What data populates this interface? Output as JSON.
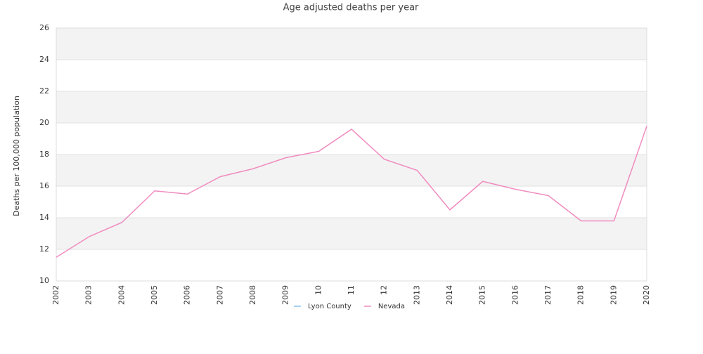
{
  "chart_data": {
    "type": "line",
    "title": "Age adjusted deaths per year",
    "y_label": "Deaths per 100,000 population",
    "categories": [
      "2002",
      "2003",
      "2004",
      "2005",
      "2006",
      "2007",
      "2008",
      "2009",
      "10",
      "11",
      "12",
      "2013",
      "2014",
      "2015",
      "2016",
      "2017",
      "2018",
      "2019",
      "2020"
    ],
    "series": [
      {
        "name": "Lyon County",
        "color": "#8ec3ea",
        "values": [
          null,
          null,
          null,
          null,
          null,
          null,
          null,
          null,
          null,
          null,
          null,
          null,
          null,
          null,
          null,
          null,
          null,
          null,
          null
        ]
      },
      {
        "name": "Nevada",
        "color": "#f08cc0",
        "values": [
          11.5,
          12.8,
          13.7,
          15.7,
          15.5,
          16.6,
          17.1,
          17.8,
          18.2,
          19.6,
          17.7,
          17.0,
          14.5,
          16.3,
          15.8,
          15.4,
          13.8,
          13.8,
          19.8
        ]
      }
    ],
    "ylim": [
      10,
      26
    ],
    "yticks": [
      10,
      12,
      14,
      16,
      18,
      20,
      22,
      24,
      26
    ],
    "grid": true,
    "legend": "bottom"
  }
}
